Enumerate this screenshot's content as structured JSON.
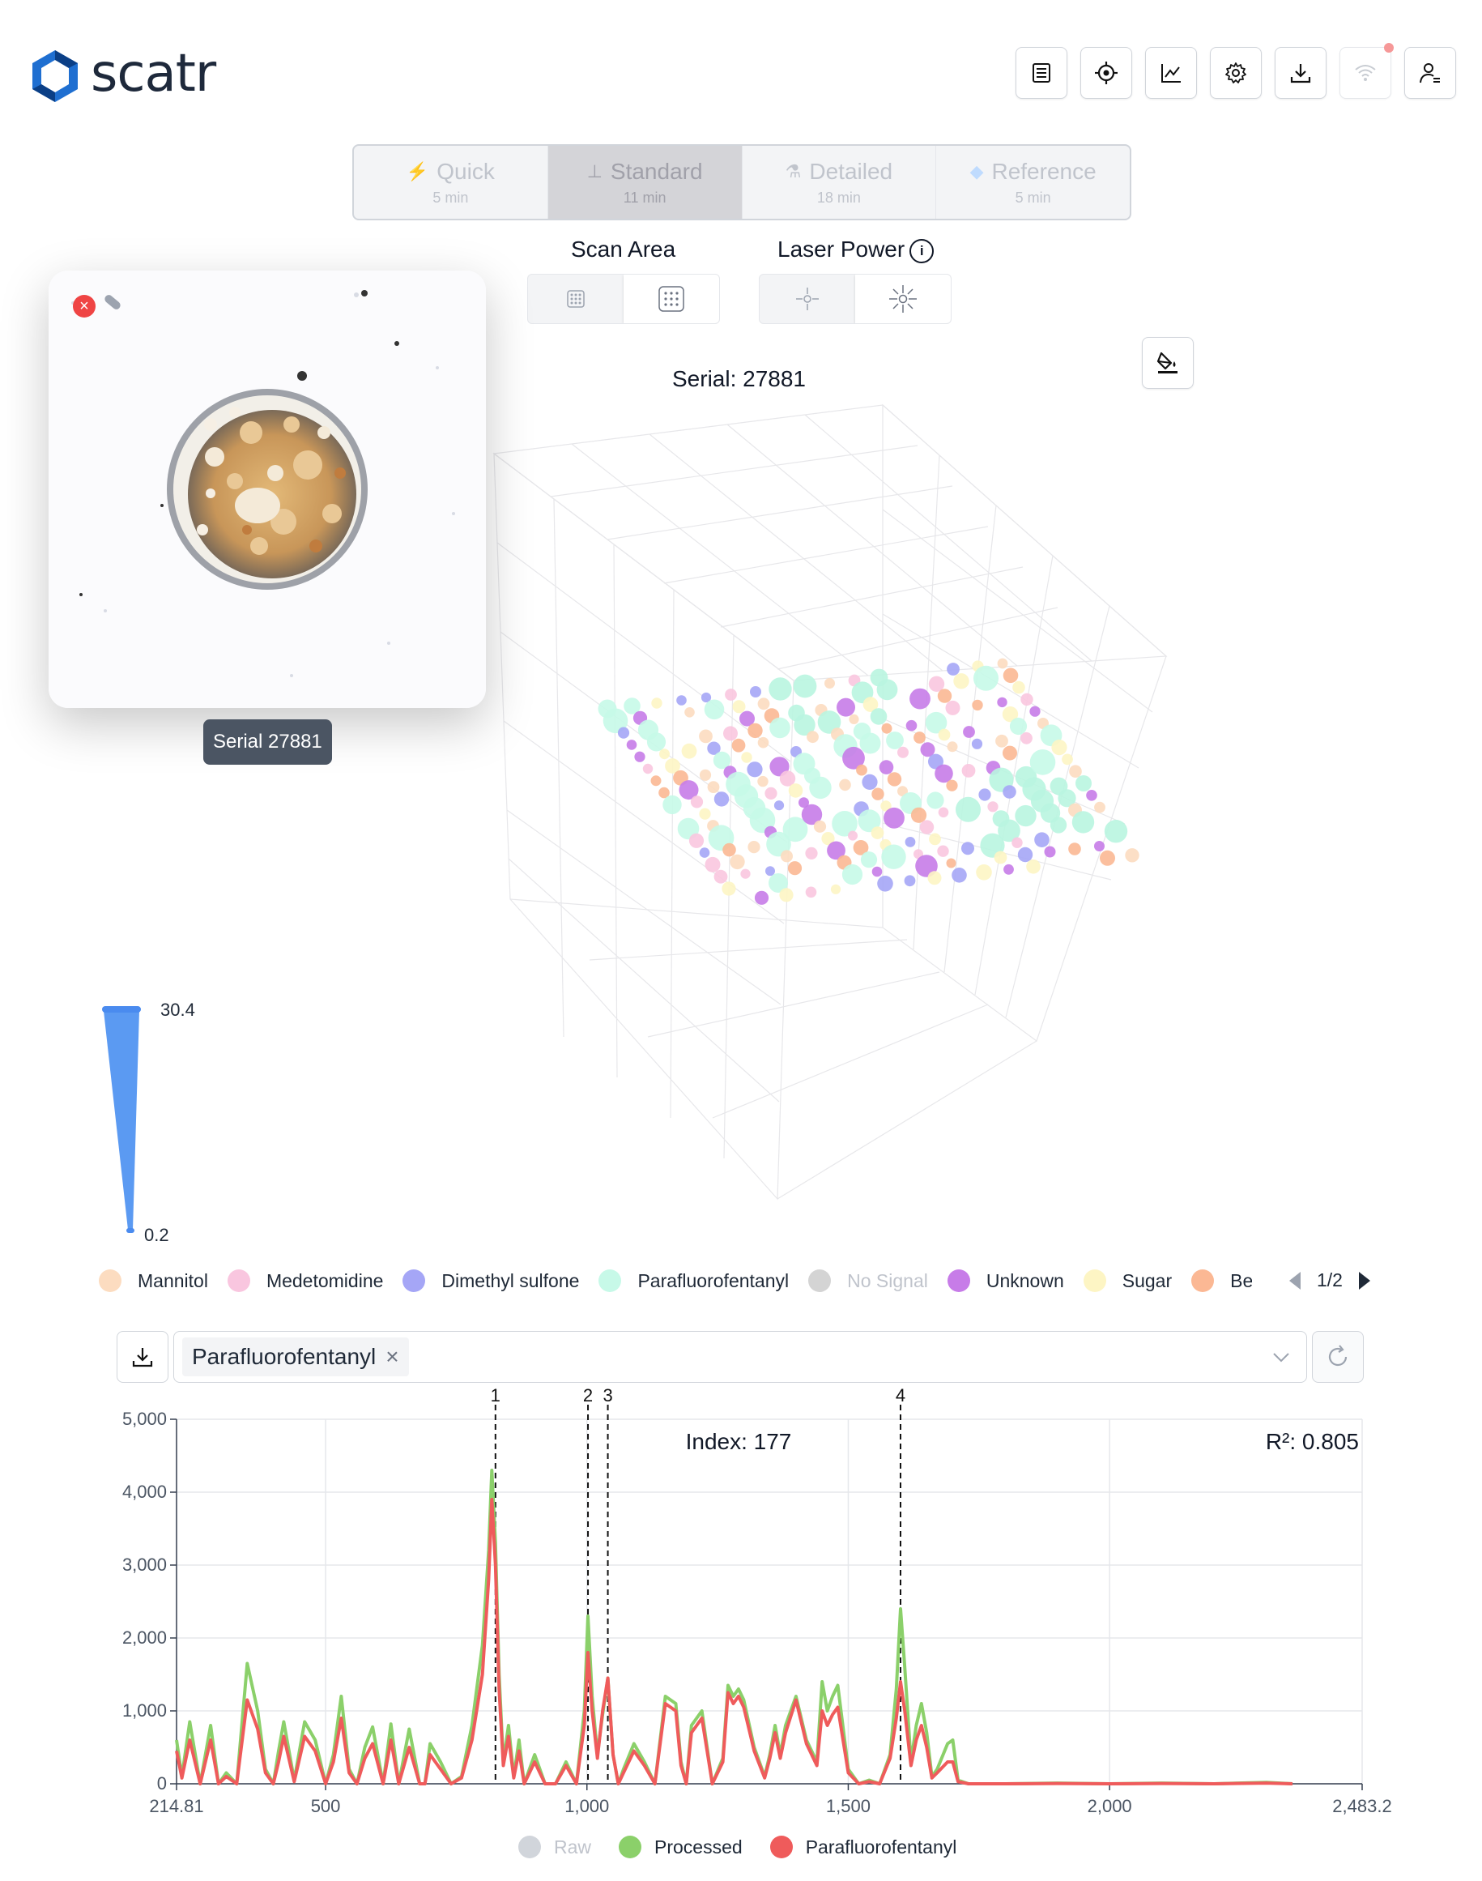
{
  "app": {
    "name": "scatr"
  },
  "toolbar": {
    "buttons": [
      {
        "name": "list",
        "icon": "list-icon"
      },
      {
        "name": "target",
        "icon": "crosshair-icon"
      },
      {
        "name": "chart",
        "icon": "line-chart-icon"
      },
      {
        "name": "settings",
        "icon": "gear-icon"
      },
      {
        "name": "download",
        "icon": "download-icon"
      },
      {
        "name": "wifi",
        "icon": "wifi-icon"
      },
      {
        "name": "user",
        "icon": "user-icon"
      }
    ]
  },
  "modes": [
    {
      "label": "Quick",
      "sub": "5 min",
      "icon": "lightning-icon"
    },
    {
      "label": "Standard",
      "sub": "11 min",
      "icon": "stage-icon",
      "active": true
    },
    {
      "label": "Detailed",
      "sub": "18 min",
      "icon": "microscope-icon"
    },
    {
      "label": "Reference",
      "sub": "5 min",
      "icon": "diamond-icon"
    }
  ],
  "scan_area": {
    "label": "Scan Area"
  },
  "laser_power": {
    "label": "Laser Power"
  },
  "photo": {
    "serial_tag": "Serial 27881"
  },
  "plot3d": {
    "title": "Serial: 27881",
    "colorscale": {
      "max": "30.4",
      "min": "0.2"
    }
  },
  "legend": {
    "items": [
      {
        "label": "Mannitol",
        "color": "#fcdcc0"
      },
      {
        "label": "Medetomidine",
        "color": "#f9c6df"
      },
      {
        "label": "Dimethyl sulfone",
        "color": "#a5a6f6"
      },
      {
        "label": "Parafluorofentanyl",
        "color": "#c7f9e8"
      },
      {
        "label": "No Signal",
        "color": "#d4d4d4",
        "muted": true
      },
      {
        "label": "Unknown",
        "color": "#c77ce8"
      },
      {
        "label": "Sugar",
        "color": "#fdf5c4"
      },
      {
        "label": "Ber",
        "color": "#fbb894"
      }
    ],
    "page": "1/2"
  },
  "spectrum": {
    "selected_compound": "Parafluorofentanyl",
    "index_label": "Index: 177",
    "r2_label": "R²: 0.805",
    "legend": [
      {
        "label": "Raw",
        "color": "#d1d5db",
        "muted": true
      },
      {
        "label": "Processed",
        "color": "#8bd06a"
      },
      {
        "label": "Parafluorofentanyl",
        "color": "#ef5b5b"
      }
    ]
  },
  "chart_data": {
    "type": "line",
    "xlim": [
      214.81,
      2483.2
    ],
    "ylim": [
      0,
      5000
    ],
    "x_ticks": [
      "214.81",
      "500",
      "1,000",
      "1,500",
      "2,000",
      "2,483.2"
    ],
    "y_ticks": [
      "0",
      "1,000",
      "2,000",
      "3,000",
      "4,000",
      "5,000"
    ],
    "peak_markers": [
      {
        "label": "1",
        "x": 825
      },
      {
        "label": "2",
        "x": 1002
      },
      {
        "label": "3",
        "x": 1040
      },
      {
        "label": "4",
        "x": 1600
      }
    ],
    "series": [
      {
        "name": "Processed",
        "x": [
          214.81,
          225,
          240,
          260,
          280,
          295,
          310,
          330,
          350,
          370,
          385,
          400,
          410,
          420,
          440,
          460,
          480,
          500,
          515,
          530,
          545,
          560,
          575,
          590,
          610,
          625,
          640,
          660,
          680,
          690,
          700,
          720,
          740,
          760,
          780,
          800,
          812,
          818,
          825,
          832,
          840,
          850,
          860,
          870,
          880,
          900,
          920,
          940,
          960,
          980,
          995,
          1002,
          1010,
          1020,
          1030,
          1040,
          1050,
          1060,
          1070,
          1090,
          1110,
          1130,
          1150,
          1170,
          1180,
          1190,
          1200,
          1220,
          1240,
          1260,
          1270,
          1280,
          1290,
          1300,
          1320,
          1340,
          1350,
          1360,
          1370,
          1380,
          1400,
          1420,
          1440,
          1450,
          1460,
          1470,
          1480,
          1500,
          1520,
          1540,
          1560,
          1580,
          1592,
          1600,
          1608,
          1620,
          1630,
          1640,
          1650,
          1660,
          1670,
          1690,
          1700,
          1710,
          1730,
          1750,
          1800,
          1900,
          2000,
          2100,
          2200,
          2300,
          2350
        ],
        "y": [
          600,
          100,
          850,
          0,
          800,
          0,
          150,
          0,
          1650,
          1000,
          200,
          0,
          450,
          850,
          50,
          850,
          600,
          0,
          400,
          1200,
          200,
          0,
          500,
          780,
          0,
          820,
          0,
          750,
          0,
          0,
          550,
          300,
          0,
          100,
          800,
          1900,
          3200,
          4300,
          3300,
          1500,
          300,
          800,
          100,
          600,
          0,
          400,
          0,
          0,
          300,
          0,
          1000,
          2300,
          1200,
          400,
          950,
          1450,
          400,
          0,
          200,
          550,
          300,
          0,
          1200,
          1100,
          300,
          0,
          800,
          1000,
          0,
          350,
          1350,
          1200,
          1300,
          1150,
          500,
          100,
          400,
          800,
          400,
          800,
          1200,
          600,
          300,
          1400,
          1000,
          1200,
          1350,
          200,
          0,
          50,
          0,
          400,
          1300,
          2400,
          1600,
          300,
          800,
          1100,
          700,
          100,
          200,
          550,
          600,
          50,
          0,
          0,
          0,
          10,
          0,
          10,
          0,
          20,
          0
        ]
      },
      {
        "name": "Parafluorofentanyl",
        "x": [
          214.81,
          225,
          240,
          260,
          280,
          295,
          310,
          330,
          350,
          370,
          385,
          400,
          410,
          420,
          440,
          460,
          480,
          500,
          515,
          530,
          545,
          560,
          575,
          590,
          610,
          625,
          640,
          660,
          680,
          690,
          700,
          720,
          740,
          760,
          780,
          800,
          812,
          818,
          825,
          832,
          840,
          850,
          860,
          870,
          880,
          900,
          920,
          940,
          960,
          980,
          995,
          1002,
          1010,
          1020,
          1030,
          1040,
          1050,
          1060,
          1070,
          1090,
          1110,
          1130,
          1150,
          1170,
          1180,
          1190,
          1200,
          1220,
          1240,
          1260,
          1270,
          1280,
          1290,
          1300,
          1320,
          1340,
          1350,
          1360,
          1370,
          1380,
          1400,
          1420,
          1440,
          1450,
          1460,
          1470,
          1480,
          1500,
          1520,
          1540,
          1560,
          1580,
          1592,
          1600,
          1608,
          1620,
          1630,
          1640,
          1650,
          1660,
          1670,
          1690,
          1700,
          1710,
          1730,
          1750,
          1800,
          1900,
          2000,
          2100,
          2200,
          2300,
          2350
        ],
        "y": [
          450,
          80,
          600,
          0,
          600,
          0,
          100,
          0,
          1150,
          750,
          150,
          0,
          300,
          650,
          30,
          650,
          450,
          0,
          300,
          900,
          150,
          0,
          350,
          550,
          0,
          600,
          0,
          500,
          0,
          0,
          400,
          200,
          0,
          80,
          600,
          1500,
          2800,
          3900,
          3000,
          1300,
          250,
          650,
          80,
          450,
          0,
          300,
          0,
          0,
          250,
          0,
          800,
          1800,
          1000,
          350,
          1000,
          1450,
          400,
          0,
          150,
          450,
          250,
          0,
          1100,
          1000,
          250,
          0,
          700,
          900,
          0,
          300,
          1250,
          1100,
          1200,
          1050,
          450,
          80,
          350,
          700,
          350,
          700,
          1150,
          550,
          250,
          1000,
          800,
          950,
          1050,
          150,
          0,
          30,
          0,
          350,
          900,
          1400,
          1000,
          250,
          600,
          800,
          500,
          80,
          150,
          300,
          300,
          30,
          0,
          0,
          0,
          5,
          0,
          5,
          0,
          10,
          0
        ]
      }
    ]
  }
}
